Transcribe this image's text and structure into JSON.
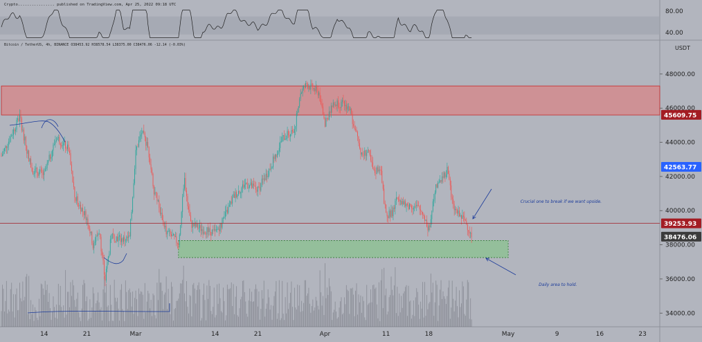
{
  "header": {
    "source_text": "Crypto................ published on TradingView.com, Apr 25, 2022 09:18 UTC"
  },
  "symbol_info": {
    "text": "Bitcoin / TetherUS, 4h, BINANCE  O38453.92  H38578.54  L38375.00  C38476.06  -12.14 (-0.03%)"
  },
  "colors": {
    "background": "#b2b5be",
    "up_candle": "#26a69a",
    "down_candle": "#ef5350",
    "resistance_zone": "#e57373",
    "support_zone": "#81c784",
    "oscillator_line": "#1f1f1f",
    "annotation_blue": "#1a3a9a",
    "price_red": "#a31c23",
    "price_blue": "#2962ff",
    "price_dark": "#3b3b3b"
  },
  "chart_data": {
    "type": "candlestick",
    "interval": "4h",
    "symbol": "Bitcoin / TetherUS",
    "exchange": "BINANCE",
    "y_axis_unit": "USDT",
    "ylim": [
      33200,
      49900
    ],
    "y_ticks": [
      "48000.00",
      "46000.00",
      "44000.00",
      "42000.00",
      "40000.00",
      "38000.00",
      "36000.00",
      "34000.00"
    ],
    "x_ticks": [
      {
        "label": "14",
        "date": "2022-02-14"
      },
      {
        "label": "21",
        "date": "2022-02-21"
      },
      {
        "label": "Mar",
        "date": "2022-03-01"
      },
      {
        "label": "14",
        "date": "2022-03-14"
      },
      {
        "label": "21",
        "date": "2022-03-21"
      },
      {
        "label": "Apr",
        "date": "2022-04-01"
      },
      {
        "label": "11",
        "date": "2022-04-11"
      },
      {
        "label": "18",
        "date": "2022-04-18"
      },
      {
        "label": "May",
        "date": "2022-05-01"
      },
      {
        "label": "9",
        "date": "2022-05-09"
      },
      {
        "label": "16",
        "date": "2022-05-16"
      },
      {
        "label": "23",
        "date": "2022-05-23"
      }
    ],
    "price_trajectory": [
      [
        "2022-02-07",
        43200
      ],
      [
        "2022-02-09",
        44700
      ],
      [
        "2022-02-10",
        45500
      ],
      [
        "2022-02-11",
        43800
      ],
      [
        "2022-02-12",
        42400
      ],
      [
        "2022-02-14",
        42100
      ],
      [
        "2022-02-16",
        44300
      ],
      [
        "2022-02-18",
        43600
      ],
      [
        "2022-02-19",
        40800
      ],
      [
        "2022-02-21",
        39600
      ],
      [
        "2022-02-22",
        38000
      ],
      [
        "2022-02-23",
        38800
      ],
      [
        "2022-02-24",
        36000
      ],
      [
        "2022-02-25",
        38500
      ],
      [
        "2022-02-27",
        38300
      ],
      [
        "2022-02-28",
        38400
      ],
      [
        "2022-03-01",
        43500
      ],
      [
        "2022-03-02",
        44600
      ],
      [
        "2022-03-03",
        43700
      ],
      [
        "2022-03-04",
        41200
      ],
      [
        "2022-03-06",
        38800
      ],
      [
        "2022-03-08",
        38100
      ],
      [
        "2022-03-09",
        41800
      ],
      [
        "2022-03-10",
        39200
      ],
      [
        "2022-03-12",
        38900
      ],
      [
        "2022-03-14",
        38700
      ],
      [
        "2022-03-15",
        39200
      ],
      [
        "2022-03-17",
        40800
      ],
      [
        "2022-03-19",
        41600
      ],
      [
        "2022-03-21",
        41200
      ],
      [
        "2022-03-23",
        42500
      ],
      [
        "2022-03-25",
        44200
      ],
      [
        "2022-03-27",
        44800
      ],
      [
        "2022-03-28",
        46900
      ],
      [
        "2022-03-29",
        47400
      ],
      [
        "2022-03-31",
        46900
      ],
      [
        "2022-04-01",
        45000
      ],
      [
        "2022-04-02",
        46100
      ],
      [
        "2022-04-03",
        46300
      ],
      [
        "2022-04-04",
        46200
      ],
      [
        "2022-04-05",
        46000
      ],
      [
        "2022-04-06",
        44600
      ],
      [
        "2022-04-07",
        43200
      ],
      [
        "2022-04-08",
        43500
      ],
      [
        "2022-04-09",
        42200
      ],
      [
        "2022-04-10",
        42600
      ],
      [
        "2022-04-11",
        39700
      ],
      [
        "2022-04-12",
        39900
      ],
      [
        "2022-04-13",
        40900
      ],
      [
        "2022-04-14",
        40300
      ],
      [
        "2022-04-15",
        40300
      ],
      [
        "2022-04-16",
        40200
      ],
      [
        "2022-04-17",
        39900
      ],
      [
        "2022-04-18",
        38900
      ],
      [
        "2022-04-19",
        41200
      ],
      [
        "2022-04-20",
        41800
      ],
      [
        "2022-04-21",
        42400
      ],
      [
        "2022-04-22",
        40200
      ],
      [
        "2022-04-23",
        39700
      ],
      [
        "2022-04-24",
        39400
      ],
      [
        "2022-04-25",
        38476
      ]
    ],
    "zones": [
      {
        "kind": "resistance",
        "from": 45600,
        "to": 47300,
        "start": "2022-02-07",
        "end": "2022-05-28"
      },
      {
        "kind": "support",
        "from": 37250,
        "to": 38250,
        "start": "2022-03-08",
        "end": "2022-05-01"
      }
    ],
    "horizontal_lines": [
      {
        "price": 39254,
        "color": "#a31c23"
      }
    ],
    "price_labels": [
      {
        "value": "45609.75",
        "price": 45610,
        "bg": "#a31c23"
      },
      {
        "value": "42563.77",
        "price": 42564,
        "bg": "#2962ff"
      },
      {
        "value": "39253.93",
        "price": 39254,
        "bg": "#a31c23"
      },
      {
        "value": "38476.06",
        "price": 38476,
        "bg": "#3b3b3b"
      }
    ],
    "annotations": [
      {
        "text": "Crucial one to break if we want upside.",
        "date": "2022-05-03",
        "price": 40450
      },
      {
        "text": "Daily area to hold.",
        "date": "2022-05-06",
        "price": 35600
      }
    ],
    "oscillator": {
      "ylim": [
        28,
        88
      ],
      "ticks": [
        "80.00",
        "40.00"
      ],
      "band": [
        36,
        70
      ]
    }
  }
}
